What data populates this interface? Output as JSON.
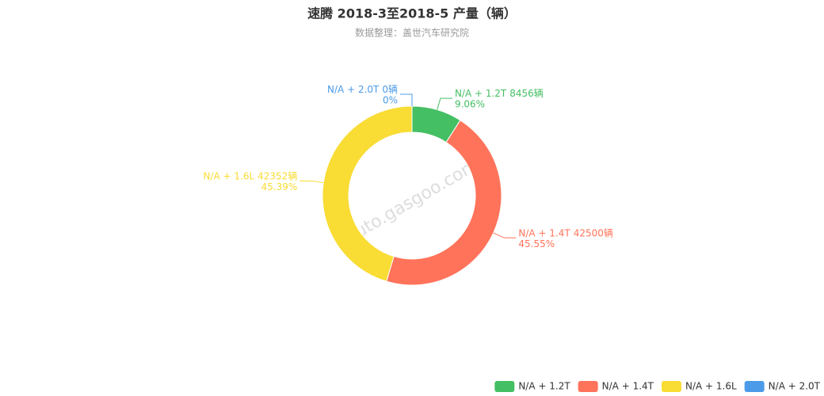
{
  "chart_data": {
    "type": "pie",
    "title": "速腾 2018-3至2018-5 产量（辆）",
    "subtitle": "数据整理：盖世汽车研究院",
    "watermark": "auto.gasgoo.com",
    "categories": [
      "N/A + 1.2T",
      "N/A + 1.4T",
      "N/A + 1.6L",
      "N/A + 2.0T"
    ],
    "values": [
      8456,
      42500,
      42352,
      0
    ],
    "value_labels": [
      "8456辆",
      "42500辆",
      "42352辆",
      "0辆"
    ],
    "percent_labels": [
      "9.06%",
      "45.55%",
      "45.39%",
      "0%"
    ],
    "colors": [
      "#44bf63",
      "#ff735a",
      "#f9dc34",
      "#4c9be8"
    ],
    "legend": "bottom-right"
  }
}
